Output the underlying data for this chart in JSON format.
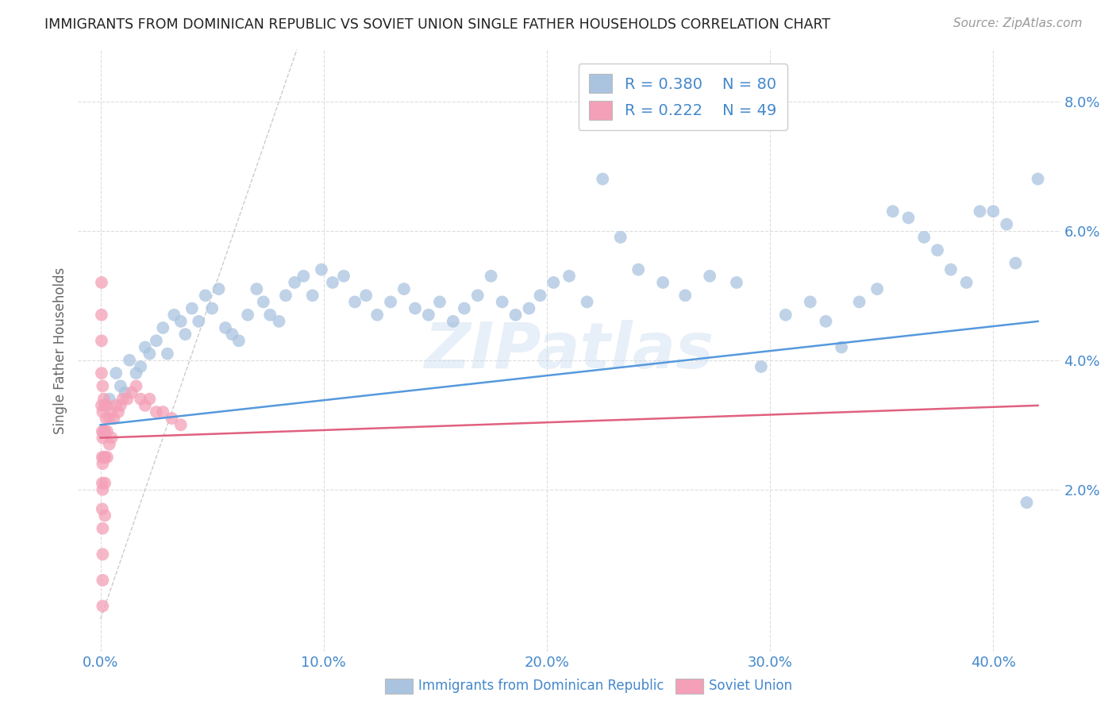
{
  "title": "IMMIGRANTS FROM DOMINICAN REPUBLIC VS SOVIET UNION SINGLE FATHER HOUSEHOLDS CORRELATION CHART",
  "source": "Source: ZipAtlas.com",
  "xlabel_ticks": [
    "0.0%",
    "10.0%",
    "20.0%",
    "30.0%",
    "40.0%"
  ],
  "xlabel_tick_vals": [
    0.0,
    0.1,
    0.2,
    0.3,
    0.4
  ],
  "ylabel_ticks": [
    "2.0%",
    "4.0%",
    "6.0%",
    "8.0%"
  ],
  "ylabel_tick_vals": [
    0.02,
    0.04,
    0.06,
    0.08
  ],
  "xlim": [
    -0.01,
    0.43
  ],
  "ylim": [
    -0.005,
    0.088
  ],
  "ylabel": "Single Father Households",
  "blue_R": 0.38,
  "blue_N": 80,
  "pink_R": 0.222,
  "pink_N": 49,
  "blue_color": "#aac4e0",
  "pink_color": "#f4a0b8",
  "blue_line_color": "#5599dd",
  "pink_line_color": "#e06080",
  "diag_line_color": "#cccccc",
  "grid_color": "#dddddd",
  "axis_color": "#4488cc",
  "watermark": "ZIPatlas",
  "blue_scatter_x": [
    0.004,
    0.007,
    0.009,
    0.011,
    0.013,
    0.016,
    0.018,
    0.02,
    0.022,
    0.025,
    0.028,
    0.03,
    0.033,
    0.036,
    0.038,
    0.041,
    0.044,
    0.047,
    0.05,
    0.053,
    0.056,
    0.059,
    0.062,
    0.066,
    0.07,
    0.073,
    0.076,
    0.08,
    0.083,
    0.087,
    0.091,
    0.095,
    0.099,
    0.104,
    0.109,
    0.114,
    0.119,
    0.124,
    0.13,
    0.136,
    0.141,
    0.147,
    0.152,
    0.158,
    0.163,
    0.169,
    0.175,
    0.18,
    0.186,
    0.192,
    0.197,
    0.203,
    0.21,
    0.218,
    0.225,
    0.233,
    0.241,
    0.252,
    0.262,
    0.273,
    0.285,
    0.296,
    0.307,
    0.318,
    0.325,
    0.332,
    0.34,
    0.348,
    0.355,
    0.362,
    0.369,
    0.375,
    0.381,
    0.388,
    0.394,
    0.4,
    0.406,
    0.41,
    0.415,
    0.42
  ],
  "blue_scatter_y": [
    0.034,
    0.038,
    0.036,
    0.035,
    0.04,
    0.038,
    0.039,
    0.042,
    0.041,
    0.043,
    0.045,
    0.041,
    0.047,
    0.046,
    0.044,
    0.048,
    0.046,
    0.05,
    0.048,
    0.051,
    0.045,
    0.044,
    0.043,
    0.047,
    0.051,
    0.049,
    0.047,
    0.046,
    0.05,
    0.052,
    0.053,
    0.05,
    0.054,
    0.052,
    0.053,
    0.049,
    0.05,
    0.047,
    0.049,
    0.051,
    0.048,
    0.047,
    0.049,
    0.046,
    0.048,
    0.05,
    0.053,
    0.049,
    0.047,
    0.048,
    0.05,
    0.052,
    0.053,
    0.049,
    0.068,
    0.059,
    0.054,
    0.052,
    0.05,
    0.053,
    0.052,
    0.039,
    0.047,
    0.049,
    0.046,
    0.042,
    0.049,
    0.051,
    0.063,
    0.062,
    0.059,
    0.057,
    0.054,
    0.052,
    0.063,
    0.063,
    0.061,
    0.055,
    0.018,
    0.068
  ],
  "pink_scatter_x": [
    0.0005,
    0.0005,
    0.0005,
    0.0005,
    0.0005,
    0.0008,
    0.0008,
    0.0008,
    0.0008,
    0.001,
    0.001,
    0.001,
    0.001,
    0.001,
    0.001,
    0.001,
    0.001,
    0.001,
    0.0015,
    0.0015,
    0.0015,
    0.002,
    0.002,
    0.002,
    0.002,
    0.002,
    0.0025,
    0.003,
    0.003,
    0.003,
    0.004,
    0.004,
    0.005,
    0.005,
    0.006,
    0.007,
    0.008,
    0.009,
    0.01,
    0.012,
    0.014,
    0.016,
    0.018,
    0.02,
    0.022,
    0.025,
    0.028,
    0.032,
    0.036
  ],
  "pink_scatter_y": [
    0.052,
    0.047,
    0.043,
    0.038,
    0.033,
    0.029,
    0.025,
    0.021,
    0.017,
    0.036,
    0.032,
    0.028,
    0.024,
    0.02,
    0.014,
    0.01,
    0.006,
    0.002,
    0.034,
    0.029,
    0.025,
    0.033,
    0.029,
    0.025,
    0.021,
    0.016,
    0.031,
    0.033,
    0.029,
    0.025,
    0.031,
    0.027,
    0.032,
    0.028,
    0.031,
    0.033,
    0.032,
    0.033,
    0.034,
    0.034,
    0.035,
    0.036,
    0.034,
    0.033,
    0.034,
    0.032,
    0.032,
    0.031,
    0.03
  ],
  "blue_trend_start_y": 0.03,
  "blue_trend_end_y": 0.046,
  "pink_trend_start_y": 0.028,
  "pink_trend_end_y": 0.033
}
